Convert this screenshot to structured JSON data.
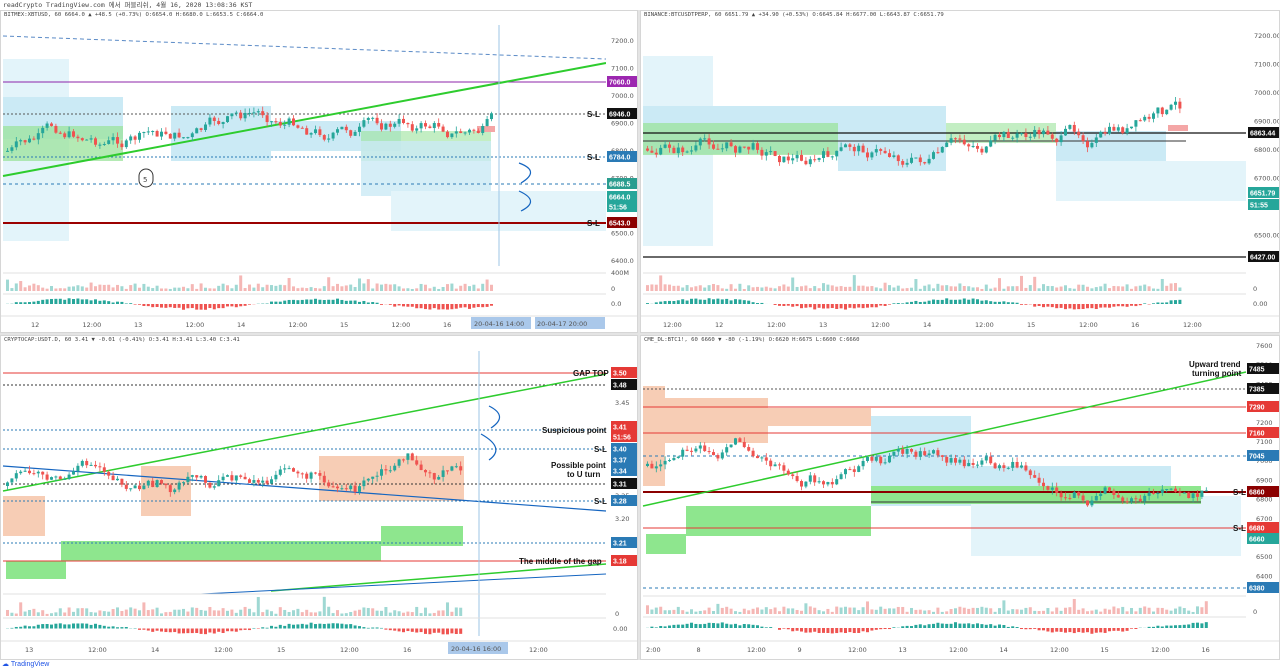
{
  "header": {
    "text": "readCrypto TradingView.com 에서 퍼블리쉬, 4월 16, 2020 13:08:36 KST"
  },
  "footer": {
    "brand": "TradingView"
  },
  "colors": {
    "green_zone": "#8ee68e",
    "blue_zone": "#bfe6f3",
    "light_blue_zone": "#e3f4fa",
    "salmon_zone": "#f7cdb5",
    "up": "#26a69a",
    "down": "#ef5350",
    "trend_green": "#2ecc2e"
  },
  "panes": [
    {
      "id": "tl",
      "ohlc": "BITMEX:XBTUSD, 60 6664.0 ▲ +48.5 (+0.73%) O:6654.0 H:6680.0 L:6653.5 C:6664.0",
      "y_ticks": [
        "7200.0",
        "7100.0",
        "7000.0",
        "6900.0",
        "6800.0",
        "6700.0",
        "6600.0",
        "6500.0",
        "6400.0"
      ],
      "vol_tick": "400M",
      "osc_ticks": [
        "0",
        "0.0"
      ],
      "x_ticks": [
        "12",
        "12:00",
        "13",
        "12:00",
        "14",
        "12:00",
        "15",
        "12:00",
        "16"
      ],
      "tags": [
        {
          "value": "7060.0",
          "color": "#9c27b0"
        },
        {
          "value": "6946.0",
          "color": "#111111"
        },
        {
          "value": "6784.0",
          "color": "#2a7ab5"
        },
        {
          "value": "6688.5",
          "color": "#2a9d8f"
        },
        {
          "value": "6664.0",
          "color": "#26a69a"
        },
        {
          "value": "51:56",
          "color": "#26a69a"
        },
        {
          "value": "6543.0",
          "color": "#8b0000"
        }
      ],
      "labels": [
        "S-L",
        "S-L",
        "S-L",
        "5"
      ],
      "time_tags": [
        "20-04-16  14:00",
        "20-04-17  20:00"
      ]
    },
    {
      "id": "tr",
      "ohlc": "BINANCE:BTCUSDTPERP, 60 6651.79 ▲ +34.90 (+0.53%) O:6645.84 H:6677.00 L:6643.87 C:6651.79",
      "y_ticks": [
        "7200.00",
        "7100.00",
        "7000.00",
        "6900.00",
        "6800.00",
        "6700.00",
        "6600.00",
        "6500.00"
      ],
      "osc_ticks": [
        "0",
        "0.00"
      ],
      "x_ticks": [
        "12:00",
        "12",
        "12:00",
        "13",
        "12:00",
        "14",
        "12:00",
        "15",
        "12:00",
        "16",
        "12:00"
      ],
      "tags": [
        {
          "value": "6863.44",
          "color": "#111111"
        },
        {
          "value": "6651.79",
          "color": "#26a69a"
        },
        {
          "value": "51:55",
          "color": "#26a69a"
        },
        {
          "value": "6427.00",
          "color": "#111111"
        }
      ]
    },
    {
      "id": "bl",
      "ohlc": "CRYPTOCAP:USDT.D, 60 3.41 ▼ -0.01 (-0.41%) O:3.41 H:3.41 L:3.40 C:3.41",
      "y_ticks": [
        "3.45",
        "3.40",
        "3.35",
        "3.30",
        "3.25",
        "3.20",
        "3.15"
      ],
      "osc_ticks": [
        "0",
        "0.00"
      ],
      "x_ticks": [
        "13",
        "12:00",
        "14",
        "12:00",
        "15",
        "12:00",
        "16",
        "17",
        "12:00"
      ],
      "tags": [
        {
          "value": "3.50",
          "color": "#e53935"
        },
        {
          "value": "3.48",
          "color": "#111111"
        },
        {
          "value": "3.41",
          "color": "#e53935"
        },
        {
          "value": "51:56",
          "color": "#e53935"
        },
        {
          "value": "3.40",
          "color": "#2a7ab5"
        },
        {
          "value": "3.37",
          "color": "#2a7ab5"
        },
        {
          "value": "3.34",
          "color": "#2a7ab5"
        },
        {
          "value": "3.31",
          "color": "#111111"
        },
        {
          "value": "3.28",
          "color": "#2a7ab5"
        },
        {
          "value": "3.21",
          "color": "#2a7ab5"
        },
        {
          "value": "3.18",
          "color": "#e53935"
        }
      ],
      "annotations": [
        "GAP TOP",
        "Suspicious point",
        "S-L",
        "Possible point",
        "to U turn",
        "S-L",
        "The middle of the gap"
      ],
      "time_tag": "20-04-16  16:00"
    },
    {
      "id": "br",
      "ohlc": "CME_DL:BTC1!, 60 6660 ▼ -80 (-1.19%) O:6620 H:6675 L:6600 C:6660",
      "y_ticks": [
        "7600",
        "7500",
        "7400",
        "7300",
        "7200",
        "7100",
        "7000",
        "6900",
        "6800",
        "6700",
        "6600",
        "6500",
        "6400"
      ],
      "osc_ticks": [
        "0"
      ],
      "x_ticks": [
        "2:00",
        "8",
        "12:00",
        "9",
        "12:00",
        "13",
        "12:00",
        "14",
        "12:00",
        "15",
        "12:00",
        "16"
      ],
      "tags": [
        {
          "value": "7485",
          "color": "#111111"
        },
        {
          "value": "7385",
          "color": "#111111"
        },
        {
          "value": "7290",
          "color": "#e53935"
        },
        {
          "value": "7160",
          "color": "#e53935"
        },
        {
          "value": "7045",
          "color": "#2a7ab5"
        },
        {
          "value": "6860",
          "color": "#8b0000"
        },
        {
          "value": "6680",
          "color": "#e53935"
        },
        {
          "value": "6660",
          "color": "#26a69a"
        },
        {
          "value": "6380",
          "color": "#2a7ab5"
        }
      ],
      "annotations": [
        "Upward trend",
        "turning point",
        "S-L",
        "S-L"
      ]
    }
  ]
}
